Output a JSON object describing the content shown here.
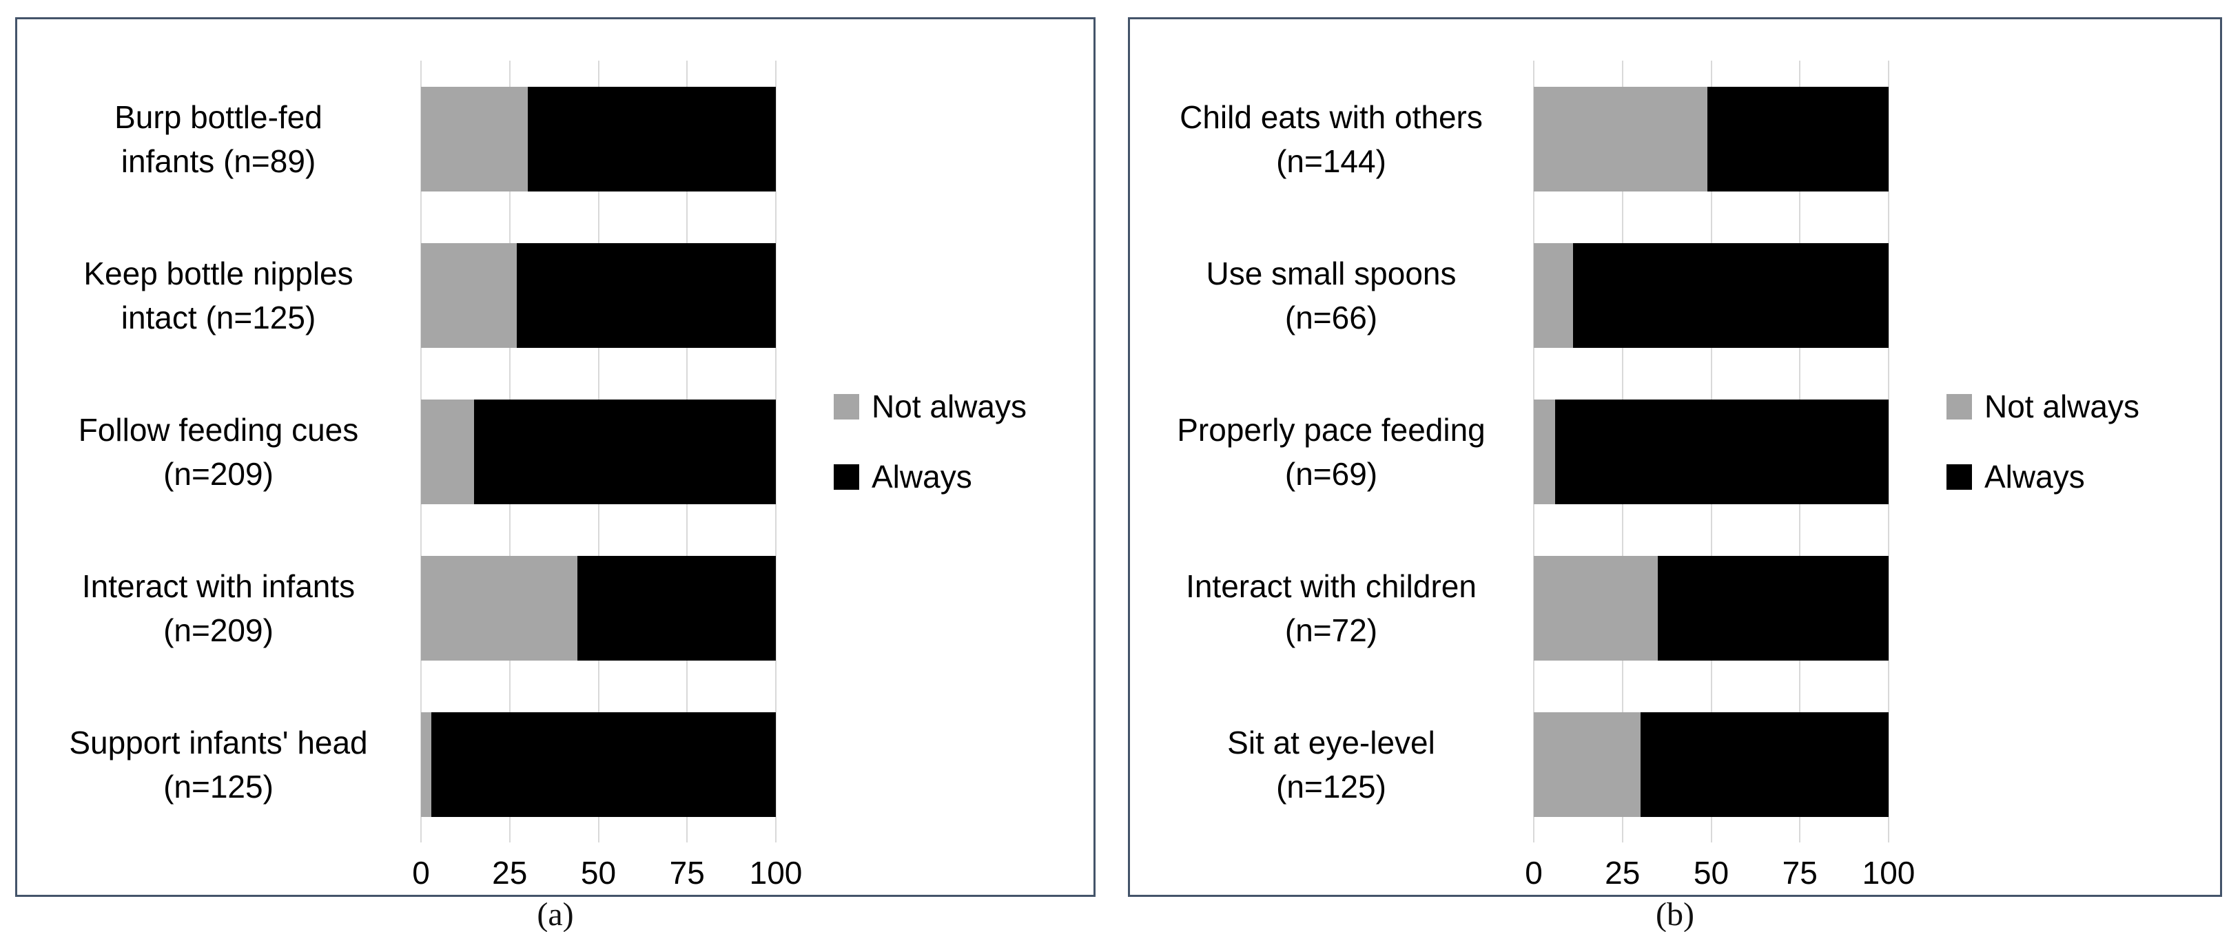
{
  "colors": {
    "not_always": "#a6a6a6",
    "always": "#000000",
    "gridline": "#d9d9d9",
    "panel_border": "#44546a"
  },
  "axis": {
    "ticks": [
      "0",
      "25",
      "50",
      "75",
      "100"
    ],
    "min": 0,
    "max": 100
  },
  "legend": {
    "items": [
      {
        "label": "Not always",
        "color": "#a6a6a6"
      },
      {
        "label": "Always",
        "color": "#000000"
      }
    ]
  },
  "captions": {
    "a": "(a)",
    "b": "(b)"
  },
  "chart_data": [
    {
      "type": "bar",
      "orientation": "horizontal",
      "stacked": true,
      "caption": "(a)",
      "categories": [
        "Burp bottle-fed infants (n=89)",
        "Keep bottle nipples intact (n=125)",
        "Follow feeding cues (n=209)",
        "Interact with infants (n=209)",
        "Support infants' head (n=125)"
      ],
      "categories_lines": [
        [
          "Burp bottle-fed",
          "infants (n=89)"
        ],
        [
          "Keep bottle nipples",
          "intact (n=125)"
        ],
        [
          "Follow feeding cues",
          "(n=209)"
        ],
        [
          "Interact with infants",
          "(n=209)"
        ],
        [
          "Support infants' head",
          "(n=125)"
        ]
      ],
      "n": [
        89,
        125,
        209,
        209,
        125
      ],
      "series": [
        {
          "name": "Not always",
          "color": "#a6a6a6",
          "values": [
            30,
            27,
            15,
            44,
            3
          ]
        },
        {
          "name": "Always",
          "color": "#000000",
          "values": [
            70,
            73,
            85,
            56,
            97
          ]
        }
      ],
      "xlim": [
        0,
        100
      ],
      "xticks": [
        0,
        25,
        50,
        75,
        100
      ],
      "grid": true,
      "legend_position": "right"
    },
    {
      "type": "bar",
      "orientation": "horizontal",
      "stacked": true,
      "caption": "(b)",
      "categories": [
        "Child eats with others (n=144)",
        "Use small spoons (n=66)",
        "Properly pace feeding (n=69)",
        "Interact with children (n=72)",
        "Sit at eye-level (n=125)"
      ],
      "categories_lines": [
        [
          "Child eats with others",
          "(n=144)"
        ],
        [
          "Use small spoons",
          "(n=66)"
        ],
        [
          "Properly pace feeding",
          "(n=69)"
        ],
        [
          "Interact with children",
          "(n=72)"
        ],
        [
          "Sit at eye-level",
          "(n=125)"
        ]
      ],
      "n": [
        144,
        66,
        69,
        72,
        125
      ],
      "series": [
        {
          "name": "Not always",
          "color": "#a6a6a6",
          "values": [
            49,
            11,
            6,
            35,
            30
          ]
        },
        {
          "name": "Always",
          "color": "#000000",
          "values": [
            51,
            89,
            94,
            65,
            70
          ]
        }
      ],
      "xlim": [
        0,
        100
      ],
      "xticks": [
        0,
        25,
        50,
        75,
        100
      ],
      "grid": true,
      "legend_position": "right"
    }
  ]
}
